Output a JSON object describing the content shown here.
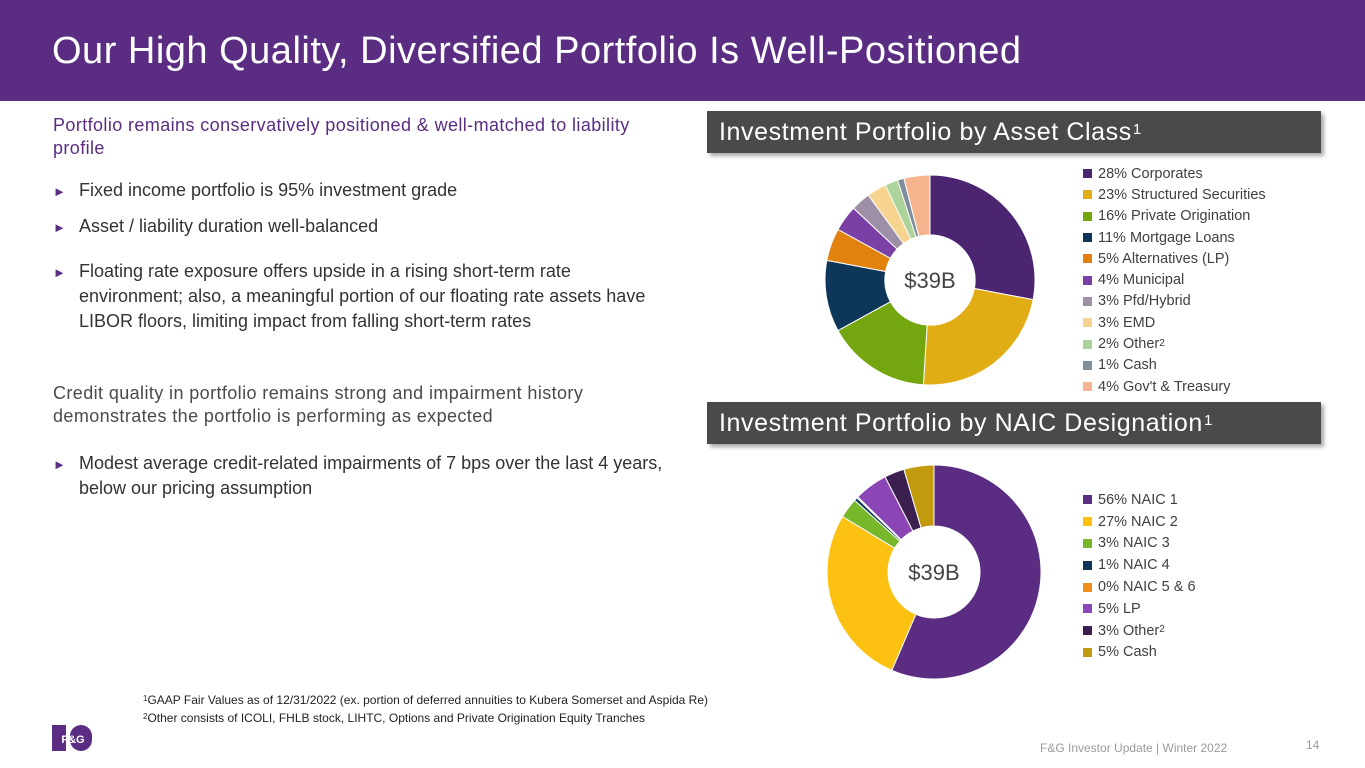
{
  "title": "Our High Quality, Diversified Portfolio Is Well-Positioned",
  "left": {
    "subheading1": "Portfolio remains conservatively positioned & well-matched to liability profile",
    "bullets1": [
      "Fixed income portfolio is 95% investment grade",
      "Asset / liability duration well-balanced",
      "Floating rate exposure offers upside in a rising short-term rate environment; also, a meaningful portion of our floating rate assets have LIBOR floors, limiting impact from falling short-term rates"
    ],
    "subheading2": "Credit quality in portfolio remains strong and impairment history demonstrates the portfolio is performing as expected",
    "bullets2": [
      "Modest average credit-related impairments of 7 bps over the last 4 years, below our pricing assumption"
    ],
    "bullet_marker": "►"
  },
  "chart_data": [
    {
      "type": "pie",
      "title": "Investment Portfolio by Asset Class",
      "title_footnote": "1",
      "center_label": "$39B",
      "categories": [
        "28% Corporates",
        "23% Structured Securities",
        "16% Private Origination",
        "11% Mortgage Loans",
        "5% Alternatives (LP)",
        "4% Municipal",
        "3% Pfd/Hybrid",
        "3% EMD",
        "2% Other",
        "1% Cash",
        "4% Gov't & Treasury"
      ],
      "label_footnotes": [
        "",
        "",
        "",
        "",
        "",
        "",
        "",
        "",
        "2",
        "",
        ""
      ],
      "values": [
        28,
        23,
        16,
        11,
        5,
        4,
        3,
        3,
        2,
        1,
        4
      ],
      "colors": [
        "#4b2570",
        "#e1ad14",
        "#74a70f",
        "#0d3659",
        "#e0820d",
        "#7a40a6",
        "#9d8fa6",
        "#f6d48f",
        "#abd39a",
        "#7e8e9c",
        "#f6b48e"
      ]
    },
    {
      "type": "pie",
      "title": "Investment Portfolio by NAIC Designation",
      "title_footnote": "1",
      "center_label": "$39B",
      "categories": [
        "56%  NAIC 1",
        "27%  NAIC 2",
        "3%  NAIC 3",
        "1%  NAIC 4",
        "0%  NAIC 5 & 6",
        "5%  LP",
        "3%  Other",
        "5%  Cash"
      ],
      "label_footnotes": [
        "",
        "",
        "",
        "",
        "",
        "",
        "2",
        ""
      ],
      "values": [
        56,
        27,
        3,
        0.5,
        0.2,
        5,
        3,
        4.5
      ],
      "colors": [
        "#5a2d82",
        "#fcc111",
        "#76b82a",
        "#0d3659",
        "#f28e1c",
        "#8b46b5",
        "#3b1f4f",
        "#c29a0e"
      ]
    }
  ],
  "footnotes": [
    {
      "mark": "1",
      "text": "GAAP Fair Values as of 12/31/2022 (ex. portion of deferred annuities to Kubera Somerset and Aspida Re)"
    },
    {
      "mark": "2",
      "text": "Other consists of ICOLI, FHLB stock, LIHTC, Options and Private Origination Equity Tranches"
    }
  ],
  "logo_text": "F&G",
  "footer": "F&G Investor Update | Winter 2022",
  "page_number": "14",
  "colors": {
    "brand_purple": "#5a2d82",
    "panel_gray": "#4a4a4a"
  }
}
